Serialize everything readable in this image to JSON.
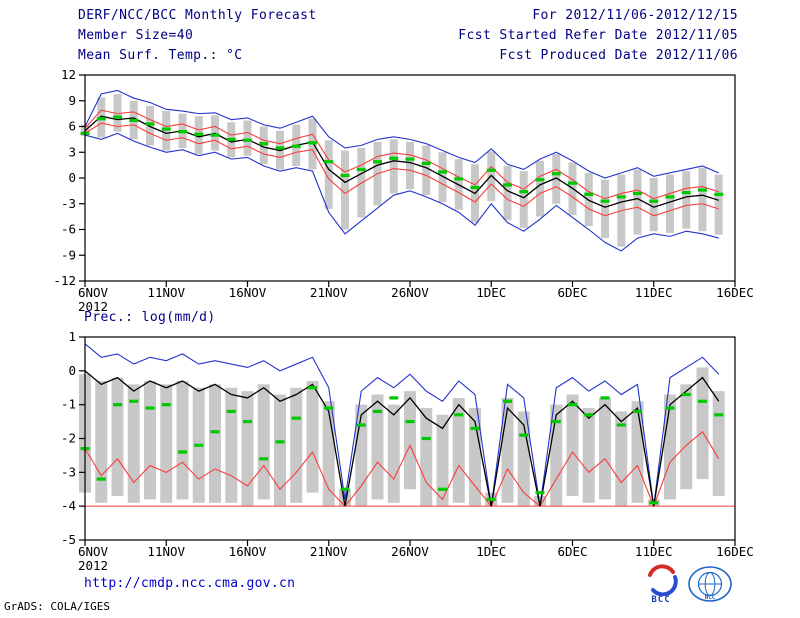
{
  "header": {
    "title": "DERF/NCC/BCC Monthly Forecast",
    "member_size": "Member Size=40",
    "for_range": "For 2012/11/06-2012/12/15",
    "fcst_started": "Fcst Started Refer Date 2012/11/05",
    "fcst_produced": "Fcst Produced Date 2012/11/06"
  },
  "footer": {
    "url": "http://cmdp.ncc.cma.gov.cn",
    "credit": "GrADS: COLA/IGES",
    "logos": [
      {
        "label": "BCC"
      },
      {
        "label": "NCC"
      }
    ]
  },
  "colors": {
    "header_navy": "#000082",
    "line_blue": "#2233cc",
    "line_red": "#fa3c3c",
    "line_black": "#000000",
    "dash_green": "#00c800",
    "bar_gray": "#c8c8c8",
    "url_blue": "#0000cd"
  },
  "chart_data": [
    {
      "name": "surface-temperature",
      "type": "line",
      "title": "Mean Surf. Temp.: °C",
      "xlabel": "",
      "ylabel": "",
      "ylim": [
        -12,
        12
      ],
      "yticks": [
        12,
        9,
        6,
        3,
        0,
        -3,
        -6,
        -9,
        -12
      ],
      "x_extent": 40,
      "x_year": "2012",
      "grid": false,
      "legend": "none",
      "xticks": [
        {
          "pos": 0,
          "label": "6NOV"
        },
        {
          "pos": 5,
          "label": "11NOV"
        },
        {
          "pos": 10,
          "label": "16NOV"
        },
        {
          "pos": 15,
          "label": "21NOV"
        },
        {
          "pos": 20,
          "label": "26NOV"
        },
        {
          "pos": 25,
          "label": "1DEC"
        },
        {
          "pos": 30,
          "label": "6DEC"
        },
        {
          "pos": 35,
          "label": "11DEC"
        },
        {
          "pos": 40,
          "label": "16DEC"
        }
      ],
      "bars": {
        "name": "ensemble-spread",
        "color": "#c8c8c8",
        "high": [
          6.2,
          9.4,
          9.8,
          9.0,
          8.4,
          7.8,
          7.5,
          7.2,
          7.3,
          6.5,
          6.7,
          6.0,
          5.5,
          6.2,
          6.9,
          4.4,
          3.2,
          3.5,
          4.2,
          4.5,
          4.2,
          3.8,
          3.0,
          2.2,
          1.6,
          3.1,
          1.4,
          0.8,
          2.0,
          2.8,
          1.8,
          0.6,
          -0.2,
          0.4,
          1.0,
          0.0,
          0.4,
          0.8,
          1.2,
          0.4
        ],
        "low": [
          4.9,
          4.7,
          5.4,
          4.5,
          3.8,
          3.2,
          3.5,
          2.8,
          3.2,
          2.4,
          2.6,
          1.6,
          1.0,
          1.4,
          1.0,
          -3.6,
          -6.0,
          -4.6,
          -3.2,
          -1.8,
          -1.3,
          -2.0,
          -2.8,
          -3.7,
          -5.2,
          -2.7,
          -4.9,
          -5.8,
          -4.5,
          -3.0,
          -4.3,
          -5.6,
          -7.0,
          -8.0,
          -6.6,
          -6.2,
          -6.4,
          -5.9,
          -6.2,
          -6.6
        ]
      },
      "series": [
        {
          "name": "ensemble-max",
          "color": "#2233cc",
          "values": [
            6.0,
            9.8,
            10.2,
            9.3,
            8.8,
            8.0,
            7.8,
            7.5,
            7.6,
            6.8,
            7.0,
            6.2,
            5.8,
            6.5,
            7.2,
            4.8,
            3.5,
            3.8,
            4.5,
            4.8,
            4.5,
            4.0,
            3.2,
            2.4,
            1.8,
            3.4,
            1.6,
            1.0,
            2.2,
            3.0,
            2.0,
            0.8,
            0.0,
            0.6,
            1.2,
            0.2,
            0.6,
            1.0,
            1.4,
            0.6
          ]
        },
        {
          "name": "ensemble-min",
          "color": "#2233cc",
          "values": [
            5.0,
            4.5,
            5.2,
            4.3,
            3.6,
            3.0,
            3.3,
            2.6,
            3.0,
            2.2,
            2.4,
            1.4,
            0.8,
            1.2,
            0.8,
            -4.0,
            -6.5,
            -5.0,
            -3.5,
            -2.0,
            -1.5,
            -2.2,
            -3.0,
            -4.0,
            -5.5,
            -3.0,
            -5.2,
            -6.2,
            -4.8,
            -3.2,
            -4.6,
            -6.0,
            -7.5,
            -8.5,
            -7.0,
            -6.5,
            -6.8,
            -6.2,
            -6.5,
            -7.0
          ]
        },
        {
          "name": "upper-quartile",
          "color": "#fa3c3c",
          "values": [
            5.8,
            7.9,
            7.5,
            7.7,
            6.8,
            6.0,
            6.3,
            5.6,
            6.0,
            5.0,
            5.3,
            4.4,
            4.0,
            4.6,
            5.1,
            2.1,
            0.7,
            1.5,
            2.5,
            2.9,
            2.7,
            2.1,
            1.1,
            0.1,
            -0.8,
            1.3,
            -0.5,
            -1.3,
            0.2,
            1.0,
            -0.2,
            -1.6,
            -2.4,
            -1.8,
            -1.4,
            -2.4,
            -1.8,
            -1.2,
            -1.0,
            -1.6
          ]
        },
        {
          "name": "lower-quartile",
          "color": "#fa3c3c",
          "values": [
            5.2,
            6.4,
            6.0,
            6.2,
            5.2,
            4.4,
            4.7,
            4.0,
            4.4,
            3.4,
            3.7,
            2.8,
            2.4,
            3.0,
            3.3,
            -0.1,
            -1.8,
            -0.6,
            0.5,
            1.1,
            0.9,
            0.3,
            -0.7,
            -1.7,
            -2.8,
            -0.7,
            -2.5,
            -3.3,
            -1.8,
            -1.0,
            -2.2,
            -3.6,
            -4.4,
            -3.8,
            -3.4,
            -4.4,
            -3.8,
            -3.2,
            -3.0,
            -3.6
          ]
        },
        {
          "name": "ensemble-mean",
          "color": "#000000",
          "values": [
            5.5,
            7.2,
            6.8,
            7.0,
            6.0,
            5.2,
            5.5,
            4.8,
            5.2,
            4.2,
            4.5,
            3.6,
            3.2,
            3.8,
            4.2,
            1.0,
            -0.5,
            0.5,
            1.5,
            2.0,
            1.8,
            1.2,
            0.2,
            -0.8,
            -1.8,
            0.3,
            -1.5,
            -2.3,
            -0.8,
            0.0,
            -1.2,
            -2.6,
            -3.4,
            -2.8,
            -2.4,
            -3.4,
            -2.8,
            -2.2,
            -2.0,
            -2.6
          ]
        }
      ],
      "dashes": {
        "name": "median",
        "color": "#00c800",
        "values": [
          5.2,
          6.9,
          7.1,
          6.7,
          6.3,
          5.7,
          5.4,
          5.1,
          5.0,
          4.5,
          4.4,
          4.0,
          3.5,
          3.7,
          4.1,
          1.9,
          0.3,
          1.0,
          1.9,
          2.3,
          2.2,
          1.7,
          0.7,
          -0.1,
          -1.1,
          0.9,
          -0.8,
          -1.6,
          -0.2,
          0.5,
          -0.6,
          -1.9,
          -2.7,
          -2.2,
          -1.8,
          -2.7,
          -2.2,
          -1.7,
          -1.4,
          -1.9
        ]
      }
    },
    {
      "name": "precipitation",
      "type": "line",
      "title": "Prec.: log(mm/d)",
      "xlabel": "",
      "ylabel": "",
      "ylim": [
        -5,
        1
      ],
      "yticks": [
        1,
        0,
        -1,
        -2,
        -3,
        -4,
        -5
      ],
      "x_extent": 40,
      "x_year": "2012",
      "grid": false,
      "legend": "none",
      "baseline": {
        "value": -4,
        "color": "#fa3c3c"
      },
      "xticks": [
        {
          "pos": 0,
          "label": "6NOV"
        },
        {
          "pos": 5,
          "label": "11NOV"
        },
        {
          "pos": 10,
          "label": "16NOV"
        },
        {
          "pos": 15,
          "label": "21NOV"
        },
        {
          "pos": 20,
          "label": "26NOV"
        },
        {
          "pos": 25,
          "label": "1DEC"
        },
        {
          "pos": 30,
          "label": "6DEC"
        },
        {
          "pos": 35,
          "label": "11DEC"
        },
        {
          "pos": 40,
          "label": "16DEC"
        }
      ],
      "bars": {
        "name": "ensemble-spread",
        "color": "#c8c8c8",
        "high": [
          -0.1,
          -0.3,
          -0.2,
          -0.4,
          -0.3,
          -0.4,
          -0.3,
          -0.5,
          -0.4,
          -0.5,
          -0.6,
          -0.4,
          -0.7,
          -0.5,
          -0.3,
          -0.9,
          -3.5,
          -1.0,
          -0.7,
          -1.0,
          -0.6,
          -1.1,
          -1.3,
          -0.8,
          -1.1,
          -3.6,
          -0.8,
          -1.2,
          -3.7,
          -1.0,
          -0.7,
          -1.1,
          -0.8,
          -1.2,
          -0.9,
          -3.8,
          -0.7,
          -0.4,
          0.1,
          -0.6
        ],
        "low": [
          -3.6,
          -3.9,
          -3.7,
          -3.9,
          -3.8,
          -3.9,
          -3.8,
          -3.9,
          -3.9,
          -3.9,
          -4.0,
          -3.8,
          -4.0,
          -3.9,
          -3.6,
          -4.0,
          -4.0,
          -4.0,
          -3.8,
          -3.9,
          -3.5,
          -4.0,
          -4.0,
          -3.9,
          -4.0,
          -4.0,
          -3.9,
          -4.0,
          -4.0,
          -4.0,
          -3.7,
          -3.9,
          -3.8,
          -4.0,
          -3.9,
          -4.0,
          -3.8,
          -3.5,
          -3.2,
          -3.7
        ]
      },
      "series": [
        {
          "name": "ensemble-max",
          "color": "#2233cc",
          "values": [
            0.8,
            0.4,
            0.5,
            0.2,
            0.4,
            0.3,
            0.5,
            0.2,
            0.3,
            0.2,
            0.1,
            0.3,
            0.0,
            0.2,
            0.4,
            -0.5,
            -3.8,
            -0.6,
            -0.2,
            -0.5,
            -0.1,
            -0.6,
            -0.9,
            -0.3,
            -0.7,
            -4.0,
            -0.4,
            -0.8,
            -4.0,
            -0.5,
            -0.2,
            -0.6,
            -0.3,
            -0.7,
            -0.4,
            -4.0,
            -0.2,
            0.1,
            0.4,
            -0.1
          ]
        },
        {
          "name": "ensemble-min",
          "color": "#fa3c3c",
          "values": [
            -2.3,
            -3.1,
            -2.6,
            -3.3,
            -2.8,
            -3.0,
            -2.7,
            -3.2,
            -2.9,
            -3.1,
            -3.4,
            -2.8,
            -3.5,
            -3.0,
            -2.4,
            -3.5,
            -4.0,
            -3.4,
            -2.7,
            -3.2,
            -2.2,
            -3.3,
            -3.8,
            -2.8,
            -3.4,
            -4.0,
            -2.9,
            -3.6,
            -4.0,
            -3.2,
            -2.4,
            -3.0,
            -2.6,
            -3.3,
            -2.8,
            -4.0,
            -2.7,
            -2.2,
            -1.8,
            -2.6
          ]
        },
        {
          "name": "ensemble-mean",
          "color": "#000000",
          "values": [
            0.0,
            -0.4,
            -0.2,
            -0.6,
            -0.3,
            -0.5,
            -0.3,
            -0.6,
            -0.4,
            -0.7,
            -0.8,
            -0.5,
            -0.9,
            -0.7,
            -0.4,
            -1.2,
            -4.0,
            -1.3,
            -0.9,
            -1.3,
            -0.8,
            -1.4,
            -1.7,
            -1.0,
            -1.5,
            -4.0,
            -1.1,
            -1.6,
            -4.0,
            -1.3,
            -0.9,
            -1.4,
            -1.0,
            -1.5,
            -1.1,
            -4.0,
            -1.0,
            -0.6,
            -0.2,
            -0.9
          ]
        }
      ],
      "dashes": {
        "name": "median",
        "color": "#00c800",
        "values": [
          -2.3,
          -3.2,
          -1.0,
          -0.9,
          -1.1,
          -1.0,
          -2.4,
          -2.2,
          -1.8,
          -1.2,
          -1.5,
          -2.6,
          -2.1,
          -1.4,
          -0.5,
          -1.1,
          -3.5,
          -1.6,
          -1.2,
          -0.8,
          -1.5,
          -2.0,
          -3.5,
          -1.3,
          -1.7,
          -3.8,
          -0.9,
          -1.9,
          -3.6,
          -1.5,
          -1.0,
          -1.3,
          -0.8,
          -1.6,
          -1.2,
          -3.9,
          -1.1,
          -0.7,
          -0.9,
          -1.3
        ]
      }
    }
  ]
}
